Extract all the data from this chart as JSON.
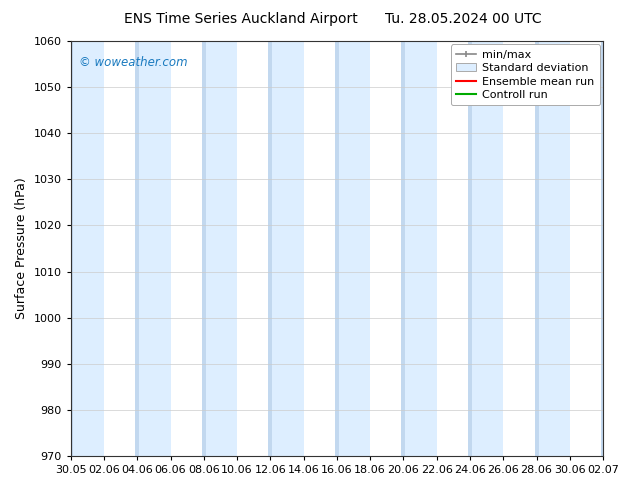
{
  "title_left": "ENS Time Series Auckland Airport",
  "title_right": "Tu. 28.05.2024 00 UTC",
  "ylabel": "Surface Pressure (hPa)",
  "ylim": [
    970,
    1060
  ],
  "yticks": [
    970,
    980,
    990,
    1000,
    1010,
    1020,
    1030,
    1040,
    1050,
    1060
  ],
  "xtick_labels": [
    "30.05",
    "02.06",
    "04.06",
    "06.06",
    "08.06",
    "10.06",
    "12.06",
    "14.06",
    "16.06",
    "18.06",
    "20.06",
    "22.06",
    "24.06",
    "26.06",
    "28.06",
    "30.06",
    "02.07"
  ],
  "band_color_light": "#ddeeff",
  "band_color_narrow": "#c2d8ef",
  "background_color": "#ffffff",
  "watermark": "© woweather.com",
  "watermark_color": "#1a7abf",
  "legend_items": [
    "min/max",
    "Standard deviation",
    "Ensemble mean run",
    "Controll run"
  ],
  "legend_colors_line": [
    "#888888",
    "#bbccdd",
    "#ff0000",
    "#00aa00"
  ],
  "title_fontsize": 10,
  "ylabel_fontsize": 9,
  "tick_fontsize": 8,
  "legend_fontsize": 8
}
